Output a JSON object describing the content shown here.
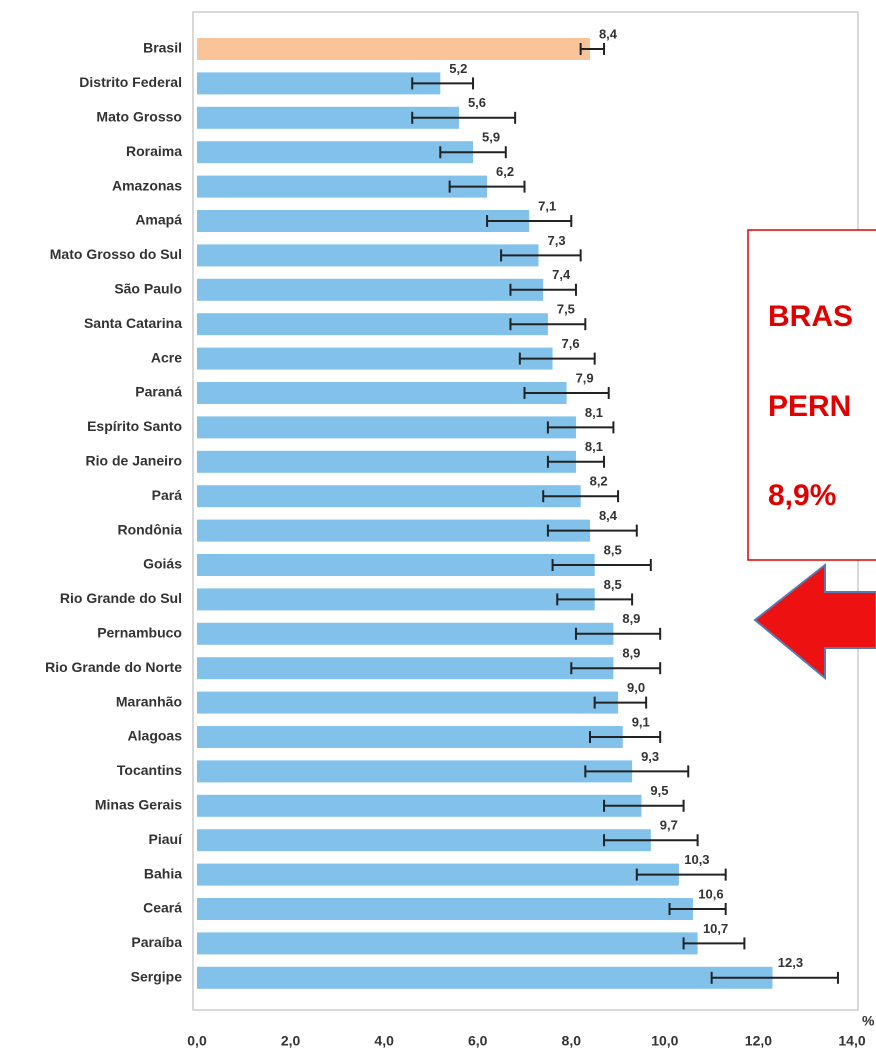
{
  "chart_data": {
    "type": "bar",
    "orientation": "horizontal",
    "categories": [
      "Brasil",
      "Distrito Federal",
      "Mato Grosso",
      "Roraima",
      "Amazonas",
      "Amapá",
      "Mato Grosso do Sul",
      "São Paulo",
      "Santa Catarina",
      "Acre",
      "Paraná",
      "Espírito Santo",
      "Rio de Janeiro",
      "Pará",
      "Rondônia",
      "Goiás",
      "Rio Grande do Sul",
      "Pernambuco",
      "Rio Grande do Norte",
      "Maranhão",
      "Alagoas",
      "Tocantins",
      "Minas Gerais",
      "Piauí",
      "Bahia",
      "Ceará",
      "Paraíba",
      "Sergipe"
    ],
    "values": [
      8.4,
      5.2,
      5.6,
      5.9,
      6.2,
      7.1,
      7.3,
      7.4,
      7.5,
      7.6,
      7.9,
      8.1,
      8.1,
      8.2,
      8.4,
      8.5,
      8.5,
      8.9,
      8.9,
      9.0,
      9.1,
      9.3,
      9.5,
      9.7,
      10.3,
      10.6,
      10.7,
      12.3
    ],
    "value_labels": [
      "8,4",
      "5,2",
      "5,6",
      "5,9",
      "6,2",
      "7,1",
      "7,3",
      "7,4",
      "7,5",
      "7,6",
      "7,9",
      "8,1",
      "8,1",
      "8,2",
      "8,4",
      "8,5",
      "8,5",
      "8,9",
      "8,9",
      "9,0",
      "9,1",
      "9,3",
      "9,5",
      "9,7",
      "10,3",
      "10,6",
      "10,7",
      "12,3"
    ],
    "ci_low": [
      8.2,
      4.6,
      4.6,
      5.2,
      5.4,
      6.2,
      6.5,
      6.7,
      6.7,
      6.9,
      7.0,
      7.5,
      7.5,
      7.4,
      7.5,
      7.6,
      7.7,
      8.1,
      8.0,
      8.5,
      8.4,
      8.3,
      8.7,
      8.7,
      9.4,
      10.1,
      10.4,
      11.0
    ],
    "ci_high": [
      8.7,
      5.9,
      6.8,
      6.6,
      7.0,
      8.0,
      8.2,
      8.1,
      8.3,
      8.5,
      8.8,
      8.9,
      8.7,
      9.0,
      9.4,
      9.7,
      9.3,
      9.9,
      9.9,
      9.6,
      9.9,
      10.5,
      10.4,
      10.7,
      11.3,
      11.3,
      11.7,
      13.7
    ],
    "colors": [
      "#f9c49a",
      "#82c1e9",
      "#82c1e9",
      "#82c1e9",
      "#82c1e9",
      "#82c1e9",
      "#82c1e9",
      "#82c1e9",
      "#82c1e9",
      "#82c1e9",
      "#82c1e9",
      "#82c1e9",
      "#82c1e9",
      "#82c1e9",
      "#82c1e9",
      "#82c1e9",
      "#82c1e9",
      "#82c1e9",
      "#82c1e9",
      "#82c1e9",
      "#82c1e9",
      "#82c1e9",
      "#82c1e9",
      "#82c1e9",
      "#82c1e9",
      "#82c1e9",
      "#82c1e9",
      "#82c1e9"
    ],
    "xlim": [
      0,
      14
    ],
    "xticks": [
      {
        "value": 0,
        "label": "0,0"
      },
      {
        "value": 2,
        "label": "2,0"
      },
      {
        "value": 4,
        "label": "4,0"
      },
      {
        "value": 6,
        "label": "6,0"
      },
      {
        "value": 8,
        "label": "8,0"
      },
      {
        "value": 10,
        "label": "10,0"
      },
      {
        "value": 12,
        "label": "12,0"
      },
      {
        "value": 14,
        "label": "14,0"
      }
    ],
    "x_unit": "%",
    "grid": false,
    "annotation": [
      "BRAS",
      "PERN",
      "8,9%"
    ]
  }
}
